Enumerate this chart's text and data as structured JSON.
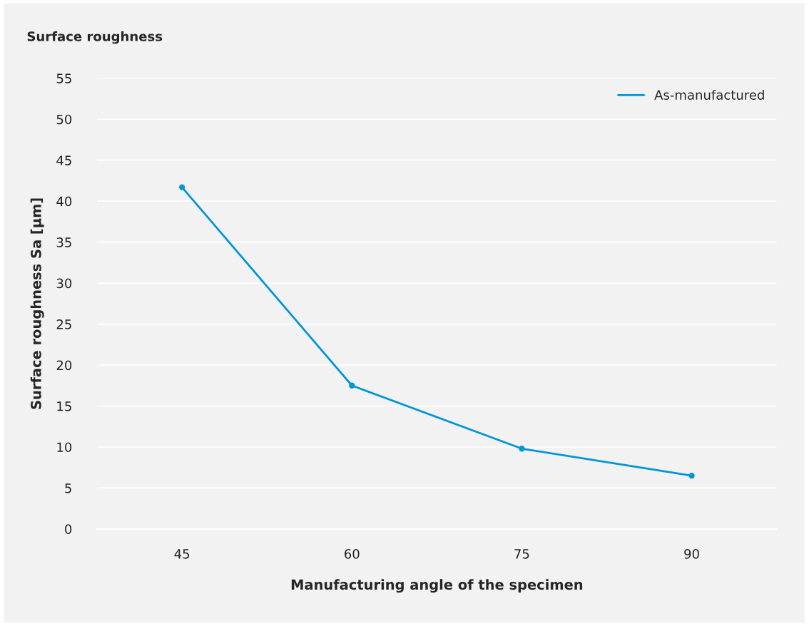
{
  "chart_data": {
    "type": "line",
    "title": "Surface roughness",
    "xlabel": "Manufacturing angle of the specimen",
    "ylabel": "Surface roughness Sa [µm]",
    "categories": [
      "45",
      "60",
      "75",
      "90"
    ],
    "series": [
      {
        "name": "As-manufactured",
        "color": "#0096d6",
        "values": [
          41.7,
          17.5,
          9.8,
          6.5
        ]
      }
    ],
    "ylim": [
      0,
      55
    ],
    "yticks": [
      0,
      5,
      10,
      15,
      20,
      25,
      30,
      35,
      40,
      45,
      50,
      55
    ],
    "grid": "y",
    "legend": "top right",
    "marker": "circle",
    "line_style": "solid"
  }
}
